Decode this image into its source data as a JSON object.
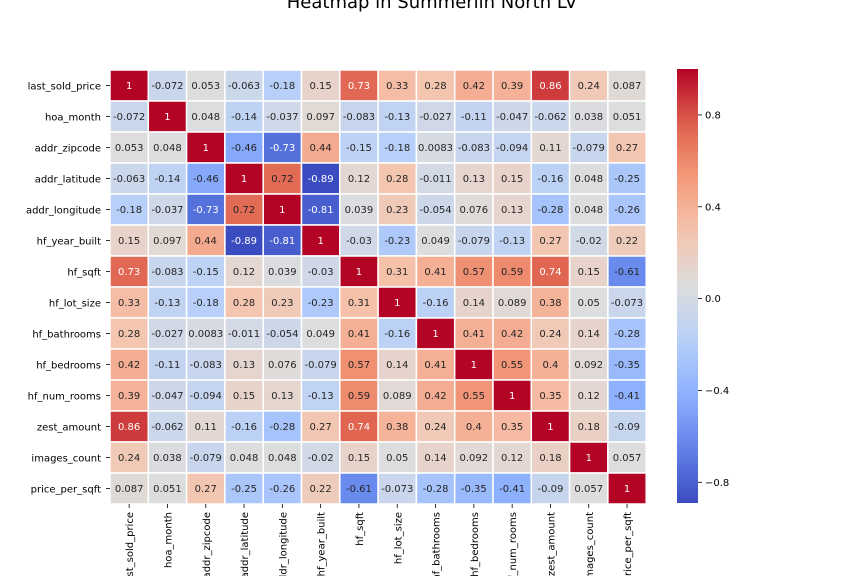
{
  "chart_data": {
    "type": "heatmap",
    "title": "Heatmap in Summerlin North LV",
    "row_labels": [
      "last_sold_price",
      "hoa_month",
      "addr_zipcode",
      "addr_latitude",
      "addr_longitude",
      "hf_year_built",
      "hf_sqft",
      "hf_lot_size",
      "hf_bathrooms",
      "hf_bedrooms",
      "hf_num_rooms",
      "zest_amount",
      "images_count",
      "price_per_sqft"
    ],
    "col_labels": [
      "last_sold_price",
      "hoa_month",
      "addr_zipcode",
      "addr_latitude",
      "addr_longitude",
      "hf_year_built",
      "hf_sqft",
      "hf_lot_size",
      "hf_bathrooms",
      "hf_bedrooms",
      "hf_num_rooms",
      "zest_amount",
      "images_count",
      "price_per_sqft"
    ],
    "values": [
      [
        "1",
        "-0.072",
        "0.053",
        "-0.063",
        "-0.18",
        "0.15",
        "0.73",
        "0.33",
        "0.28",
        "0.42",
        "0.39",
        "0.86",
        "0.24",
        "0.087"
      ],
      [
        "-0.072",
        "1",
        "0.048",
        "-0.14",
        "-0.037",
        "0.097",
        "-0.083",
        "-0.13",
        "-0.027",
        "-0.11",
        "-0.047",
        "-0.062",
        "0.038",
        "0.051"
      ],
      [
        "0.053",
        "0.048",
        "1",
        "-0.46",
        "-0.73",
        "0.44",
        "-0.15",
        "-0.18",
        "0.0083",
        "-0.083",
        "-0.094",
        "0.11",
        "-0.079",
        "0.27"
      ],
      [
        "-0.063",
        "-0.14",
        "-0.46",
        "1",
        "0.72",
        "-0.89",
        "0.12",
        "0.28",
        "-0.011",
        "0.13",
        "0.15",
        "-0.16",
        "0.048",
        "-0.25"
      ],
      [
        "-0.18",
        "-0.037",
        "-0.73",
        "0.72",
        "1",
        "-0.81",
        "0.039",
        "0.23",
        "-0.054",
        "0.076",
        "0.13",
        "-0.28",
        "0.048",
        "-0.26"
      ],
      [
        "0.15",
        "0.097",
        "0.44",
        "-0.89",
        "-0.81",
        "1",
        "-0.03",
        "-0.23",
        "0.049",
        "-0.079",
        "-0.13",
        "0.27",
        "-0.02",
        "0.22"
      ],
      [
        "0.73",
        "-0.083",
        "-0.15",
        "0.12",
        "0.039",
        "-0.03",
        "1",
        "0.31",
        "0.41",
        "0.57",
        "0.59",
        "0.74",
        "0.15",
        "-0.61"
      ],
      [
        "0.33",
        "-0.13",
        "-0.18",
        "0.28",
        "0.23",
        "-0.23",
        "0.31",
        "1",
        "-0.16",
        "0.14",
        "0.089",
        "0.38",
        "0.05",
        "-0.073"
      ],
      [
        "0.28",
        "-0.027",
        "0.0083",
        "-0.011",
        "-0.054",
        "0.049",
        "0.41",
        "-0.16",
        "1",
        "0.41",
        "0.42",
        "0.24",
        "0.14",
        "-0.28"
      ],
      [
        "0.42",
        "-0.11",
        "-0.083",
        "0.13",
        "0.076",
        "-0.079",
        "0.57",
        "0.14",
        "0.41",
        "1",
        "0.55",
        "0.4",
        "0.092",
        "-0.35"
      ],
      [
        "0.39",
        "-0.047",
        "-0.094",
        "0.15",
        "0.13",
        "-0.13",
        "0.59",
        "0.089",
        "0.42",
        "0.55",
        "1",
        "0.35",
        "0.12",
        "-0.41"
      ],
      [
        "0.86",
        "-0.062",
        "0.11",
        "-0.16",
        "-0.28",
        "0.27",
        "0.74",
        "0.38",
        "0.24",
        "0.4",
        "0.35",
        "1",
        "0.18",
        "-0.09"
      ],
      [
        "0.24",
        "0.038",
        "-0.079",
        "0.048",
        "0.048",
        "-0.02",
        "0.15",
        "0.05",
        "0.14",
        "0.092",
        "0.12",
        "0.18",
        "1",
        "0.057"
      ],
      [
        "0.087",
        "0.051",
        "0.27",
        "-0.25",
        "-0.26",
        "0.22",
        "-0.61",
        "-0.073",
        "-0.28",
        "-0.35",
        "-0.41",
        "-0.09",
        "0.057",
        "1"
      ]
    ],
    "colormap": "coolwarm",
    "vmin": -0.89,
    "vmax": 1,
    "colorbar_ticks": [
      "0.8",
      "0.4",
      "0.0",
      "−0.4",
      "−0.8"
    ],
    "colorbar_tick_values": [
      0.8,
      0.4,
      0.0,
      -0.4,
      -0.8
    ],
    "grid_line_color": "#ffffff"
  }
}
